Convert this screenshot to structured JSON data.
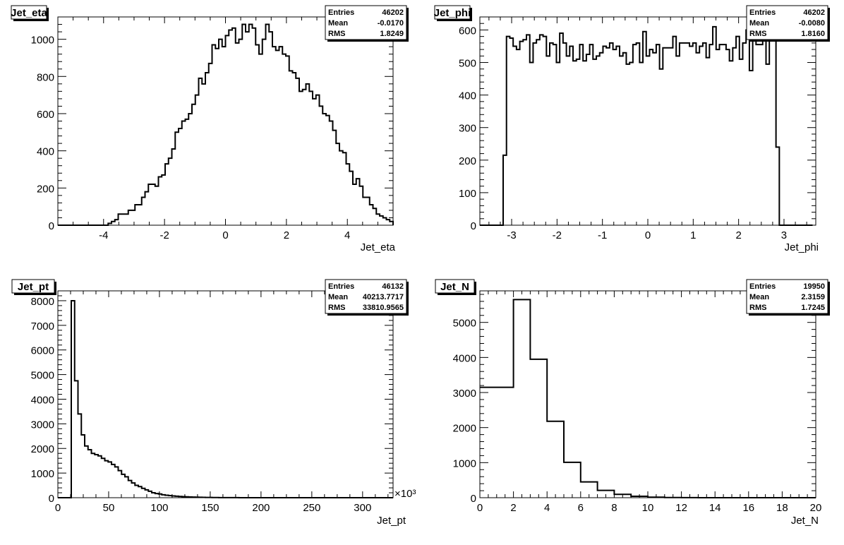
{
  "chart_data": [
    {
      "type": "histogram",
      "title": "Jet_eta",
      "xlabel": "Jet_eta",
      "ylabel": "",
      "xlim": [
        -5.5,
        5.5
      ],
      "ylim": [
        0,
        1120
      ],
      "x_ticks": [
        -4,
        -2,
        0,
        2,
        4
      ],
      "y_ticks": [
        0,
        200,
        400,
        600,
        800,
        1000
      ],
      "x_multiplier": "",
      "stats": {
        "Entries": "46202",
        "Mean": "-0.0170",
        "RMS": "1.8249"
      },
      "bin_start": -5.5,
      "bin_width": 0.11,
      "values": [
        0,
        0,
        0,
        0,
        0,
        0,
        0,
        0,
        0,
        0,
        0,
        0,
        0,
        0,
        0,
        10,
        20,
        30,
        60,
        60,
        60,
        80,
        80,
        110,
        110,
        150,
        180,
        220,
        220,
        210,
        260,
        270,
        330,
        360,
        410,
        500,
        520,
        560,
        570,
        600,
        650,
        700,
        790,
        760,
        820,
        870,
        970,
        950,
        1000,
        960,
        1020,
        1050,
        1060,
        980,
        1000,
        1080,
        1040,
        1080,
        1060,
        970,
        920,
        1000,
        1080,
        1040,
        960,
        940,
        960,
        920,
        910,
        830,
        820,
        790,
        720,
        730,
        760,
        720,
        680,
        700,
        640,
        600,
        590,
        560,
        510,
        440,
        400,
        390,
        330,
        290,
        220,
        250,
        210,
        150,
        150,
        110,
        90,
        60,
        50,
        40,
        30,
        20,
        10,
        0,
        0,
        0,
        0
      ]
    },
    {
      "type": "histogram",
      "title": "Jet_phi",
      "xlabel": "Jet_phi",
      "ylabel": "",
      "xlim": [
        -3.7,
        3.7
      ],
      "ylim": [
        0,
        640
      ],
      "x_ticks": [
        -3,
        -2,
        -1,
        0,
        1,
        2,
        3
      ],
      "y_ticks": [
        0,
        100,
        200,
        300,
        400,
        500,
        600
      ],
      "x_multiplier": "",
      "stats": {
        "Entries": "46202",
        "Mean": "-0.0080",
        "RMS": "1.8160"
      },
      "bin_start": -3.7,
      "bin_width": 0.0733,
      "values": [
        0,
        0,
        0,
        0,
        0,
        0,
        0,
        215,
        580,
        575,
        550,
        540,
        565,
        570,
        585,
        500,
        560,
        570,
        585,
        580,
        520,
        560,
        555,
        500,
        590,
        560,
        520,
        550,
        505,
        510,
        555,
        505,
        525,
        555,
        510,
        520,
        530,
        550,
        545,
        560,
        540,
        550,
        520,
        530,
        495,
        500,
        555,
        560,
        500,
        595,
        520,
        540,
        530,
        555,
        480,
        545,
        545,
        545,
        580,
        520,
        560,
        560,
        560,
        550,
        560,
        530,
        550,
        560,
        515,
        555,
        610,
        540,
        555,
        555,
        540,
        505,
        545,
        580,
        510,
        560,
        600,
        475,
        590,
        555,
        555,
        600,
        495,
        570,
        575,
        240,
        0,
        0,
        0,
        0,
        0,
        0,
        0,
        0,
        0,
        0
      ]
    },
    {
      "type": "histogram",
      "title": "Jet_pt",
      "xlabel": "Jet_pt",
      "ylabel": "",
      "xlim": [
        0,
        330
      ],
      "ylim": [
        0,
        8400
      ],
      "x_ticks": [
        0,
        50,
        100,
        150,
        200,
        250,
        300
      ],
      "y_ticks": [
        0,
        1000,
        2000,
        3000,
        4000,
        5000,
        6000,
        7000,
        8000
      ],
      "x_multiplier": "×10³",
      "stats": {
        "Entries": "46132",
        "Mean": "40213.7717",
        "RMS": "33810.9565"
      },
      "bin_start": 0,
      "bin_width": 3.3,
      "values": [
        0,
        0,
        0,
        0,
        8000,
        4750,
        3400,
        2550,
        2100,
        1950,
        1800,
        1750,
        1700,
        1600,
        1500,
        1450,
        1350,
        1250,
        1100,
        950,
        850,
        700,
        600,
        500,
        450,
        380,
        320,
        260,
        200,
        170,
        150,
        120,
        100,
        85,
        70,
        60,
        50,
        42,
        35,
        30,
        25,
        22,
        18,
        15,
        12,
        10,
        8,
        6,
        5,
        4,
        3,
        3,
        2,
        2,
        1,
        1,
        1,
        0,
        0,
        0,
        0,
        0,
        0,
        0,
        0,
        0,
        0,
        0,
        0,
        0,
        0,
        0,
        0,
        0,
        0,
        0,
        0,
        0,
        0,
        0,
        0,
        0,
        0,
        0,
        0,
        0,
        0,
        0,
        0,
        0,
        0,
        0,
        0,
        0,
        0,
        0,
        0,
        0,
        0,
        0
      ]
    },
    {
      "type": "histogram",
      "title": "Jet_N",
      "xlabel": "Jet_N",
      "ylabel": "",
      "xlim": [
        0,
        20
      ],
      "ylim": [
        0,
        5900
      ],
      "x_ticks": [
        0,
        2,
        4,
        6,
        8,
        10,
        12,
        14,
        16,
        18,
        20
      ],
      "y_ticks": [
        0,
        1000,
        2000,
        3000,
        4000,
        5000
      ],
      "x_multiplier": "",
      "stats": {
        "Entries": "19950",
        "Mean": "2.3159",
        "RMS": "1.7245"
      },
      "bin_start": 0,
      "bin_width": 1,
      "values": [
        3150,
        3150,
        5650,
        3950,
        2180,
        1010,
        450,
        210,
        95,
        40,
        15,
        5,
        2,
        0,
        0,
        0,
        0,
        0,
        0,
        0
      ]
    }
  ]
}
